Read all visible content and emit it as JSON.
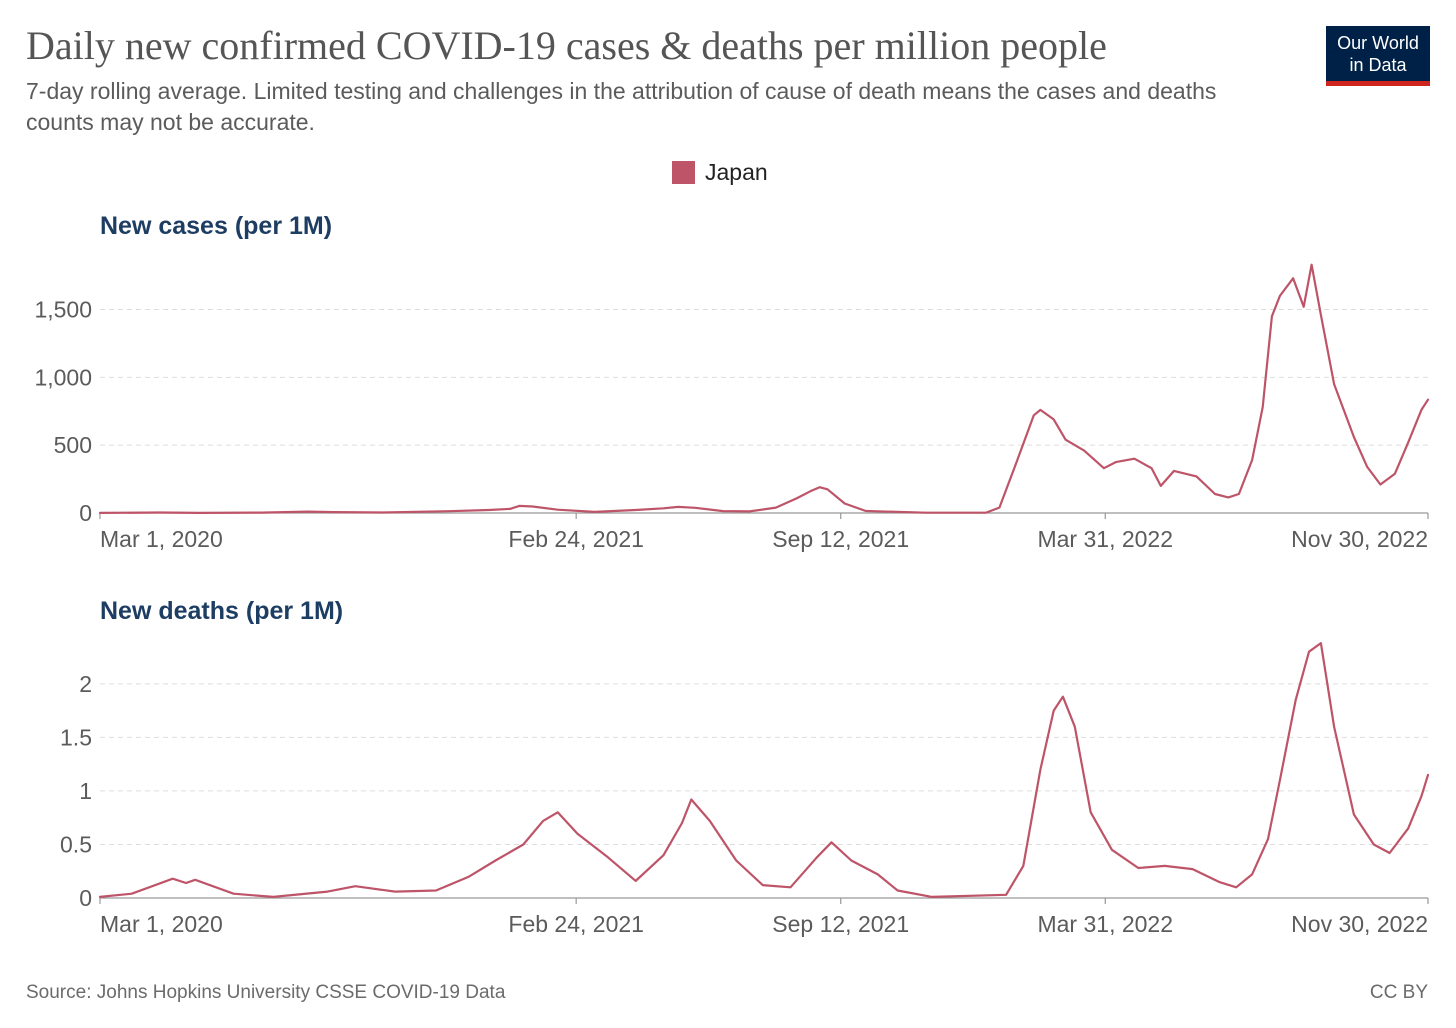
{
  "header": {
    "title": "Daily new confirmed COVID-19 cases & deaths per million people",
    "subtitle": "7-day rolling average. Limited testing and challenges in the attribution of cause of death means the cases and deaths counts may not be accurate.",
    "logo_line1": "Our World",
    "logo_line2": "in Data"
  },
  "legend": {
    "label": "Japan",
    "color": "#be5468"
  },
  "footer": {
    "source": "Source: Johns Hopkins University CSSE COVID-19 Data",
    "license": "CC BY"
  },
  "chart_data": [
    {
      "type": "line",
      "title": "New cases (per 1M)",
      "xlabel": "",
      "ylabel": "",
      "x_range": [
        "2020-03-01",
        "2022-11-30"
      ],
      "x_ticks": [
        "Mar 1, 2020",
        "Feb 24, 2021",
        "Sep 12, 2021",
        "Mar 31, 2022",
        "Nov 30, 2022"
      ],
      "x_tick_dates": [
        "2020-03-01",
        "2021-02-24",
        "2021-09-12",
        "2022-03-31",
        "2022-11-30"
      ],
      "y_ticks": [
        0,
        500,
        1000,
        1500
      ],
      "y_tick_labels": [
        "0",
        "500",
        "1,000",
        "1,500"
      ],
      "ylim": [
        0,
        1850
      ],
      "grid": true,
      "series": [
        {
          "name": "Japan",
          "color": "#be5468",
          "points": [
            [
              "2020-03-01",
              1
            ],
            [
              "2020-04-15",
              4
            ],
            [
              "2020-05-15",
              1
            ],
            [
              "2020-07-01",
              3
            ],
            [
              "2020-08-05",
              10
            ],
            [
              "2020-08-25",
              7
            ],
            [
              "2020-10-01",
              4
            ],
            [
              "2020-11-20",
              13
            ],
            [
              "2020-12-20",
              22
            ],
            [
              "2021-01-05",
              30
            ],
            [
              "2021-01-12",
              52
            ],
            [
              "2021-01-22",
              48
            ],
            [
              "2021-02-10",
              24
            ],
            [
              "2021-03-10",
              8
            ],
            [
              "2021-04-10",
              22
            ],
            [
              "2021-05-01",
              35
            ],
            [
              "2021-05-12",
              45
            ],
            [
              "2021-05-25",
              38
            ],
            [
              "2021-06-15",
              14
            ],
            [
              "2021-07-05",
              12
            ],
            [
              "2021-07-25",
              40
            ],
            [
              "2021-08-10",
              110
            ],
            [
              "2021-08-20",
              160
            ],
            [
              "2021-08-27",
              190
            ],
            [
              "2021-09-02",
              175
            ],
            [
              "2021-09-15",
              70
            ],
            [
              "2021-10-01",
              15
            ],
            [
              "2021-11-15",
              2
            ],
            [
              "2021-12-31",
              3
            ],
            [
              "2022-01-10",
              40
            ],
            [
              "2022-01-22",
              350
            ],
            [
              "2022-02-05",
              720
            ],
            [
              "2022-02-10",
              760
            ],
            [
              "2022-02-20",
              690
            ],
            [
              "2022-03-01",
              540
            ],
            [
              "2022-03-15",
              460
            ],
            [
              "2022-03-30",
              330
            ],
            [
              "2022-04-08",
              375
            ],
            [
              "2022-04-22",
              400
            ],
            [
              "2022-05-05",
              330
            ],
            [
              "2022-05-12",
              200
            ],
            [
              "2022-05-22",
              310
            ],
            [
              "2022-06-08",
              270
            ],
            [
              "2022-06-22",
              140
            ],
            [
              "2022-07-02",
              115
            ],
            [
              "2022-07-10",
              140
            ],
            [
              "2022-07-20",
              390
            ],
            [
              "2022-07-28",
              780
            ],
            [
              "2022-08-04",
              1450
            ],
            [
              "2022-08-10",
              1600
            ],
            [
              "2022-08-20",
              1730
            ],
            [
              "2022-08-28",
              1520
            ],
            [
              "2022-09-03",
              1830
            ],
            [
              "2022-09-10",
              1460
            ],
            [
              "2022-09-20",
              950
            ],
            [
              "2022-10-05",
              560
            ],
            [
              "2022-10-15",
              340
            ],
            [
              "2022-10-25",
              210
            ],
            [
              "2022-11-05",
              290
            ],
            [
              "2022-11-15",
              520
            ],
            [
              "2022-11-25",
              760
            ],
            [
              "2022-11-30",
              835
            ]
          ]
        }
      ]
    },
    {
      "type": "line",
      "title": "New deaths (per 1M)",
      "xlabel": "",
      "ylabel": "",
      "x_range": [
        "2020-03-01",
        "2022-11-30"
      ],
      "x_ticks": [
        "Mar 1, 2020",
        "Feb 24, 2021",
        "Sep 12, 2021",
        "Mar 31, 2022",
        "Nov 30, 2022"
      ],
      "x_tick_dates": [
        "2020-03-01",
        "2021-02-24",
        "2021-09-12",
        "2022-03-31",
        "2022-11-30"
      ],
      "y_ticks": [
        0,
        0.5,
        1,
        1.5,
        2
      ],
      "y_tick_labels": [
        "0",
        "0.5",
        "1",
        "1.5",
        "2"
      ],
      "ylim": [
        0,
        2.4
      ],
      "grid": true,
      "series": [
        {
          "name": "Japan",
          "color": "#be5468",
          "points": [
            [
              "2020-03-01",
              0.01
            ],
            [
              "2020-03-25",
              0.04
            ],
            [
              "2020-04-25",
              0.18
            ],
            [
              "2020-05-05",
              0.14
            ],
            [
              "2020-05-12",
              0.17
            ],
            [
              "2020-06-10",
              0.04
            ],
            [
              "2020-07-10",
              0.01
            ],
            [
              "2020-08-20",
              0.06
            ],
            [
              "2020-09-10",
              0.11
            ],
            [
              "2020-10-10",
              0.06
            ],
            [
              "2020-11-10",
              0.07
            ],
            [
              "2020-12-05",
              0.2
            ],
            [
              "2020-12-25",
              0.35
            ],
            [
              "2021-01-15",
              0.5
            ],
            [
              "2021-01-30",
              0.72
            ],
            [
              "2021-02-10",
              0.8
            ],
            [
              "2021-02-25",
              0.6
            ],
            [
              "2021-03-20",
              0.38
            ],
            [
              "2021-04-10",
              0.16
            ],
            [
              "2021-05-01",
              0.4
            ],
            [
              "2021-05-15",
              0.7
            ],
            [
              "2021-05-22",
              0.92
            ],
            [
              "2021-06-05",
              0.72
            ],
            [
              "2021-06-25",
              0.35
            ],
            [
              "2021-07-15",
              0.12
            ],
            [
              "2021-08-05",
              0.1
            ],
            [
              "2021-08-25",
              0.38
            ],
            [
              "2021-09-05",
              0.52
            ],
            [
              "2021-09-20",
              0.35
            ],
            [
              "2021-10-10",
              0.22
            ],
            [
              "2021-10-25",
              0.07
            ],
            [
              "2021-11-20",
              0.01
            ],
            [
              "2022-01-15",
              0.03
            ],
            [
              "2022-01-28",
              0.3
            ],
            [
              "2022-02-10",
              1.2
            ],
            [
              "2022-02-20",
              1.75
            ],
            [
              "2022-02-27",
              1.88
            ],
            [
              "2022-03-08",
              1.6
            ],
            [
              "2022-03-20",
              0.8
            ],
            [
              "2022-04-05",
              0.45
            ],
            [
              "2022-04-25",
              0.28
            ],
            [
              "2022-05-15",
              0.3
            ],
            [
              "2022-06-05",
              0.27
            ],
            [
              "2022-06-25",
              0.15
            ],
            [
              "2022-07-08",
              0.1
            ],
            [
              "2022-07-20",
              0.22
            ],
            [
              "2022-08-01",
              0.55
            ],
            [
              "2022-08-10",
              1.1
            ],
            [
              "2022-08-22",
              1.85
            ],
            [
              "2022-09-01",
              2.3
            ],
            [
              "2022-09-10",
              2.38
            ],
            [
              "2022-09-20",
              1.6
            ],
            [
              "2022-10-05",
              0.78
            ],
            [
              "2022-10-20",
              0.5
            ],
            [
              "2022-11-01",
              0.42
            ],
            [
              "2022-11-15",
              0.65
            ],
            [
              "2022-11-25",
              0.95
            ],
            [
              "2022-11-30",
              1.15
            ]
          ]
        }
      ]
    }
  ]
}
